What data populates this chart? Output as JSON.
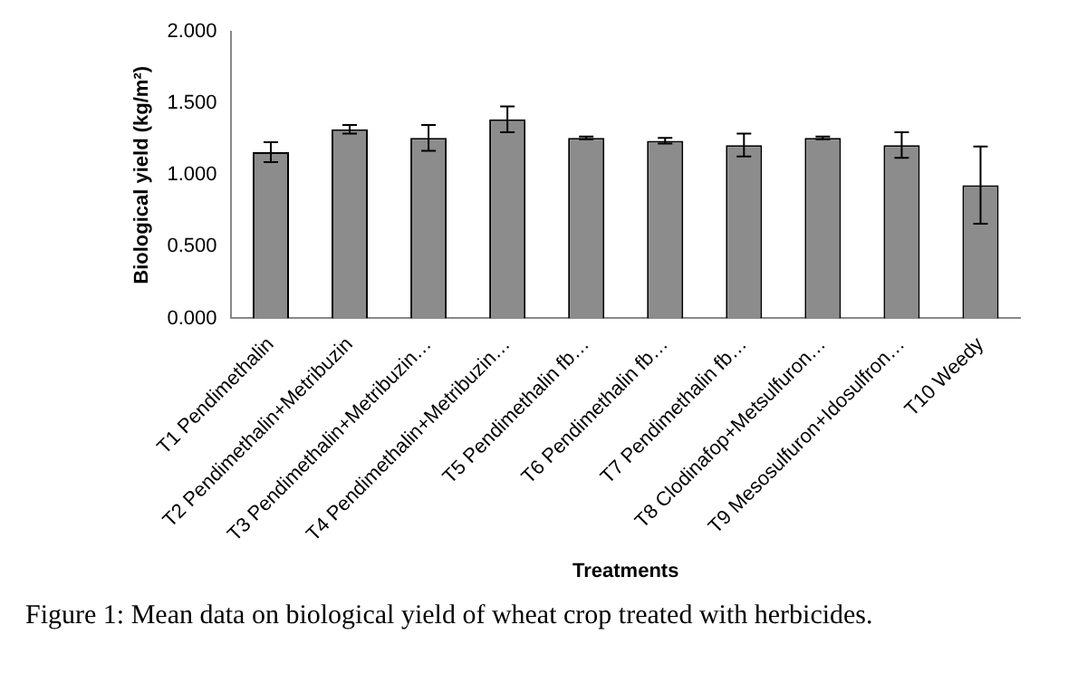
{
  "chart_data": {
    "type": "bar",
    "xlabel": "Treatments",
    "ylabel": "Biological yield (kg/m²)",
    "categories": [
      "T1 Pendimethalin",
      "T2 Pendimethalin+Metribuzin",
      "T3 Pendimethalin+Metribuzin…",
      "T4 Pendimethalin+Metribuzin…",
      "T5 Pendimethalin fb…",
      "T6 Pendimethalin fb…",
      "T7 Pendimethalin fb…",
      "T8 Clodinafop+Metsulfuron…",
      "T9 Mesosulfuron+Idosulfron…",
      "T10 Weedy"
    ],
    "values": [
      1.16,
      1.32,
      1.26,
      1.39,
      1.26,
      1.24,
      1.21,
      1.26,
      1.21,
      0.93
    ],
    "errors": [
      0.07,
      0.03,
      0.09,
      0.09,
      0.01,
      0.02,
      0.08,
      0.01,
      0.09,
      0.27
    ],
    "color": "#8c8c8c",
    "ylim": [
      0,
      2
    ],
    "yticks": [
      {
        "value": 0,
        "label": "0.000"
      },
      {
        "value": 0.5,
        "label": "0.500"
      },
      {
        "value": 1,
        "label": "1.000"
      },
      {
        "value": 1.5,
        "label": "1.500"
      },
      {
        "value": 2,
        "label": "2.000"
      }
    ],
    "grid": false,
    "legend": false,
    "annotations": [
      "Figure 1: Mean data on biological yield of wheat crop treated with herbicides."
    ]
  }
}
